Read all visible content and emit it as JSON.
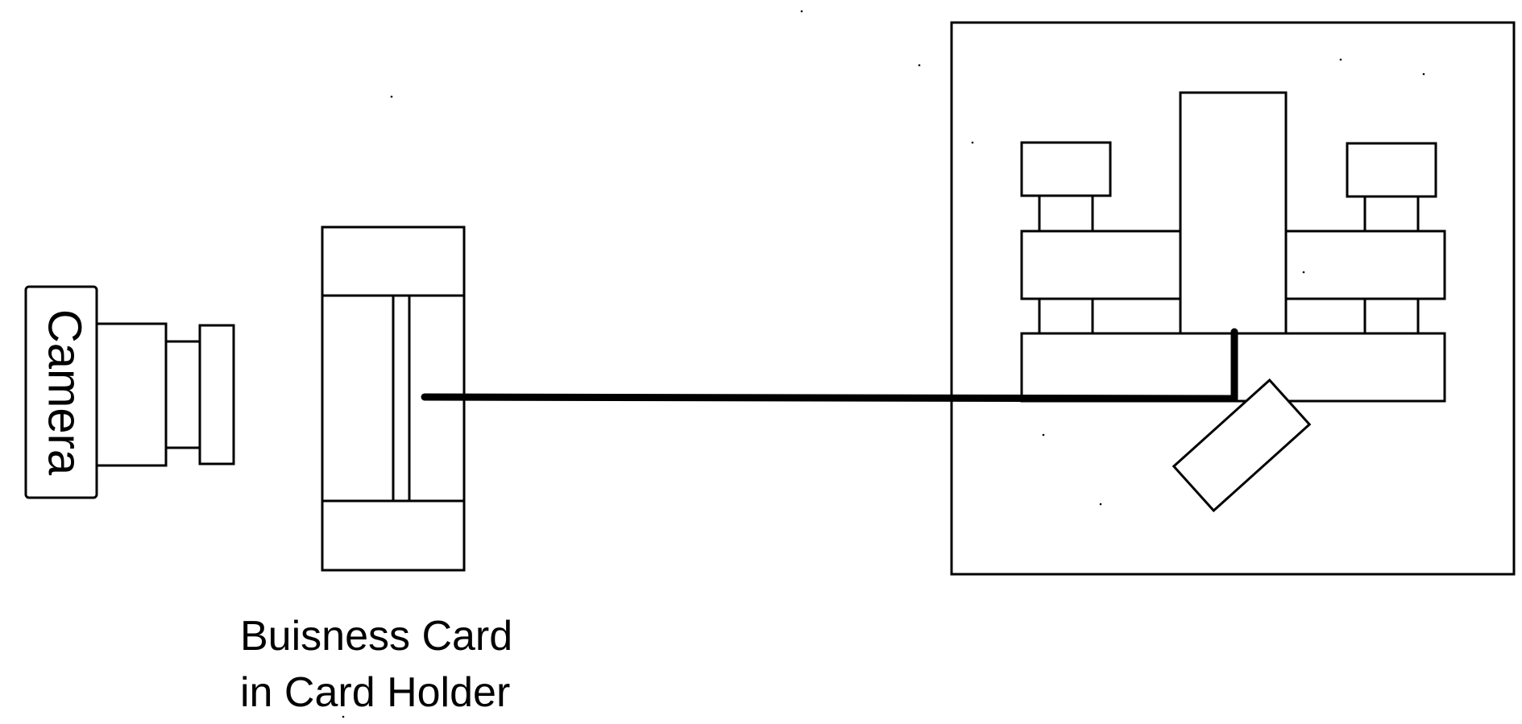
{
  "camera": {
    "label": "Camera"
  },
  "card_holder": {
    "caption_line1": "Buisness Card",
    "caption_line2": "in Card Holder"
  },
  "colors": {
    "stroke": "#000000",
    "background": "#ffffff"
  }
}
